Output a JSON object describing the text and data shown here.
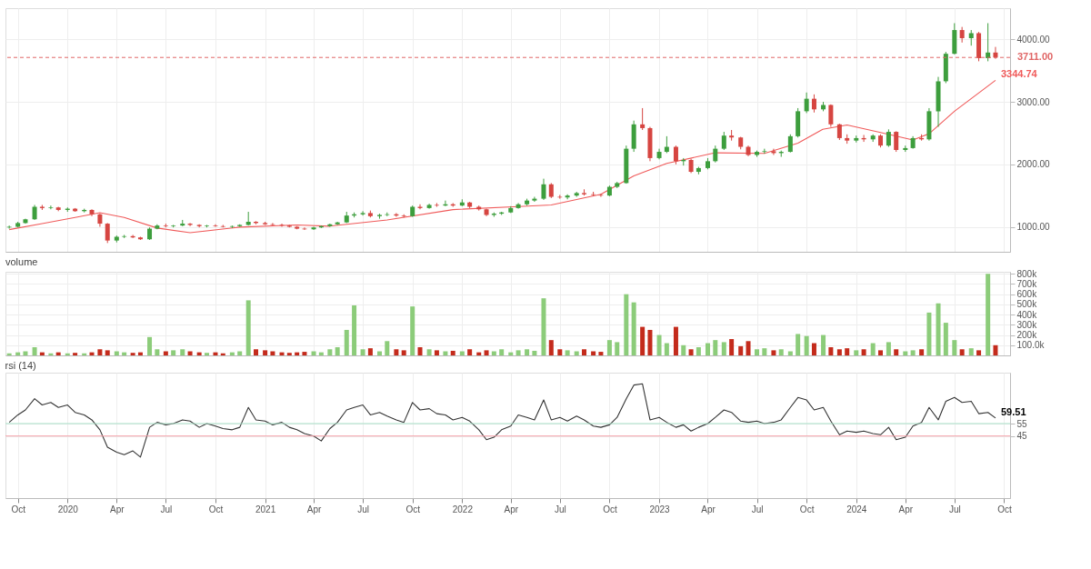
{
  "chart_data": [
    {
      "type": "candlestick",
      "grid": true,
      "tick_labels": "y",
      "x": [
        "2019-09-15",
        "2019-10-01",
        "2019-10-15",
        "2019-11-01",
        "2019-11-15",
        "2019-12-01",
        "2019-12-15",
        "2020-01-01",
        "2020-01-15",
        "2020-02-01",
        "2020-02-15",
        "2020-03-01",
        "2020-03-15",
        "2020-04-01",
        "2020-04-15",
        "2020-05-01",
        "2020-05-15",
        "2020-06-01",
        "2020-06-15",
        "2020-07-01",
        "2020-07-15",
        "2020-08-01",
        "2020-08-15",
        "2020-09-01",
        "2020-09-15",
        "2020-10-01",
        "2020-10-15",
        "2020-11-01",
        "2020-11-15",
        "2020-12-01",
        "2020-12-15",
        "2021-01-01",
        "2021-01-15",
        "2021-02-01",
        "2021-02-15",
        "2021-03-01",
        "2021-03-15",
        "2021-04-01",
        "2021-04-15",
        "2021-05-01",
        "2021-05-15",
        "2021-06-01",
        "2021-06-15",
        "2021-07-01",
        "2021-07-15",
        "2021-08-01",
        "2021-08-15",
        "2021-09-01",
        "2021-09-15",
        "2021-10-01",
        "2021-10-15",
        "2021-11-01",
        "2021-11-15",
        "2021-12-01",
        "2021-12-15",
        "2022-01-01",
        "2022-01-15",
        "2022-02-01",
        "2022-02-15",
        "2022-03-01",
        "2022-03-15",
        "2022-04-01",
        "2022-04-15",
        "2022-05-01",
        "2022-05-15",
        "2022-06-01",
        "2022-06-15",
        "2022-07-01",
        "2022-07-15",
        "2022-08-01",
        "2022-08-15",
        "2022-09-01",
        "2022-09-15",
        "2022-10-01",
        "2022-10-15",
        "2022-11-01",
        "2022-11-15",
        "2022-12-01",
        "2022-12-15",
        "2023-01-01",
        "2023-01-15",
        "2023-02-01",
        "2023-02-15",
        "2023-03-01",
        "2023-03-15",
        "2023-04-01",
        "2023-04-15",
        "2023-05-01",
        "2023-05-15",
        "2023-06-01",
        "2023-06-15",
        "2023-07-01",
        "2023-07-15",
        "2023-08-01",
        "2023-08-15",
        "2023-09-01",
        "2023-09-15",
        "2023-10-01",
        "2023-10-15",
        "2023-11-01",
        "2023-11-15",
        "2023-12-01",
        "2023-12-15",
        "2024-01-01",
        "2024-01-15",
        "2024-02-01",
        "2024-02-15",
        "2024-03-01",
        "2024-03-15",
        "2024-04-01",
        "2024-04-15",
        "2024-05-01",
        "2024-05-15",
        "2024-06-01",
        "2024-06-15",
        "2024-07-01",
        "2024-07-15",
        "2024-08-01",
        "2024-08-15",
        "2024-09-01",
        "2024-09-15"
      ],
      "ohlc": [
        [
          990,
          1020,
          970,
          1000
        ],
        [
          1000,
          1080,
          990,
          1060
        ],
        [
          1060,
          1130,
          1050,
          1120
        ],
        [
          1120,
          1350,
          1110,
          1320
        ],
        [
          1320,
          1350,
          1270,
          1300
        ],
        [
          1300,
          1340,
          1280,
          1310
        ],
        [
          1310,
          1320,
          1250,
          1270
        ],
        [
          1270,
          1310,
          1240,
          1290
        ],
        [
          1290,
          1300,
          1240,
          1250
        ],
        [
          1250,
          1290,
          1230,
          1270
        ],
        [
          1270,
          1280,
          1170,
          1200
        ],
        [
          1200,
          1210,
          1000,
          1050
        ],
        [
          1050,
          1060,
          740,
          780
        ],
        [
          780,
          860,
          750,
          840
        ],
        [
          840,
          870,
          820,
          850
        ],
        [
          850,
          870,
          820,
          830
        ],
        [
          830,
          840,
          790,
          800
        ],
        [
          800,
          990,
          790,
          970
        ],
        [
          970,
          1040,
          960,
          1020
        ],
        [
          1020,
          1050,
          990,
          1010
        ],
        [
          1010,
          1030,
          990,
          1020
        ],
        [
          1020,
          1110,
          1010,
          1050
        ],
        [
          1050,
          1060,
          1010,
          1030
        ],
        [
          1030,
          1040,
          990,
          1010
        ],
        [
          1010,
          1030,
          990,
          1020
        ],
        [
          1020,
          1040,
          1000,
          1010
        ],
        [
          1010,
          1030,
          990,
          1000
        ],
        [
          1000,
          1020,
          980,
          1010
        ],
        [
          1010,
          1040,
          1000,
          1030
        ],
        [
          1030,
          1240,
          1020,
          1080
        ],
        [
          1080,
          1090,
          1040,
          1060
        ],
        [
          1060,
          1080,
          1030,
          1040
        ],
        [
          1040,
          1060,
          1020,
          1030
        ],
        [
          1030,
          1050,
          1000,
          1020
        ],
        [
          1020,
          1030,
          990,
          1000
        ],
        [
          1000,
          1010,
          960,
          970
        ],
        [
          970,
          990,
          950,
          960
        ],
        [
          960,
          1000,
          950,
          990
        ],
        [
          990,
          1020,
          980,
          1010
        ],
        [
          1010,
          1050,
          1000,
          1040
        ],
        [
          1040,
          1080,
          1030,
          1070
        ],
        [
          1070,
          1240,
          1060,
          1180
        ],
        [
          1180,
          1230,
          1150,
          1200
        ],
        [
          1200,
          1250,
          1180,
          1220
        ],
        [
          1220,
          1260,
          1150,
          1170
        ],
        [
          1170,
          1210,
          1130,
          1190
        ],
        [
          1190,
          1230,
          1170,
          1200
        ],
        [
          1200,
          1220,
          1160,
          1180
        ],
        [
          1180,
          1200,
          1150,
          1170
        ],
        [
          1170,
          1340,
          1160,
          1320
        ],
        [
          1320,
          1360,
          1280,
          1300
        ],
        [
          1300,
          1370,
          1290,
          1350
        ],
        [
          1350,
          1380,
          1320,
          1340
        ],
        [
          1340,
          1420,
          1330,
          1360
        ],
        [
          1360,
          1380,
          1320,
          1340
        ],
        [
          1340,
          1440,
          1330,
          1390
        ],
        [
          1390,
          1400,
          1300,
          1320
        ],
        [
          1320,
          1340,
          1260,
          1280
        ],
        [
          1280,
          1290,
          1170,
          1190
        ],
        [
          1190,
          1230,
          1160,
          1210
        ],
        [
          1210,
          1240,
          1190,
          1230
        ],
        [
          1230,
          1330,
          1220,
          1300
        ],
        [
          1300,
          1380,
          1290,
          1360
        ],
        [
          1360,
          1450,
          1340,
          1420
        ],
        [
          1420,
          1480,
          1400,
          1450
        ],
        [
          1450,
          1770,
          1430,
          1680
        ],
        [
          1680,
          1700,
          1460,
          1480
        ],
        [
          1480,
          1510,
          1450,
          1470
        ],
        [
          1470,
          1520,
          1440,
          1500
        ],
        [
          1500,
          1560,
          1480,
          1540
        ],
        [
          1540,
          1600,
          1500,
          1520
        ],
        [
          1520,
          1560,
          1490,
          1510
        ],
        [
          1510,
          1530,
          1480,
          1500
        ],
        [
          1500,
          1660,
          1490,
          1640
        ],
        [
          1640,
          1720,
          1620,
          1700
        ],
        [
          1700,
          2300,
          1690,
          2250
        ],
        [
          2250,
          2700,
          2200,
          2640
        ],
        [
          2640,
          2900,
          2550,
          2580
        ],
        [
          2580,
          2600,
          2050,
          2100
        ],
        [
          2100,
          2250,
          2080,
          2200
        ],
        [
          2200,
          2450,
          2180,
          2280
        ],
        [
          2280,
          2300,
          2000,
          2050
        ],
        [
          2050,
          2100,
          1980,
          2070
        ],
        [
          2070,
          2090,
          1860,
          1880
        ],
        [
          1880,
          1960,
          1840,
          1940
        ],
        [
          1940,
          2100,
          1920,
          2050
        ],
        [
          2050,
          2300,
          2030,
          2250
        ],
        [
          2250,
          2520,
          2230,
          2460
        ],
        [
          2460,
          2550,
          2380,
          2430
        ],
        [
          2430,
          2440,
          2240,
          2280
        ],
        [
          2280,
          2300,
          2130,
          2150
        ],
        [
          2150,
          2220,
          2120,
          2200
        ],
        [
          2200,
          2250,
          2170,
          2210
        ],
        [
          2210,
          2250,
          2150,
          2180
        ],
        [
          2180,
          2220,
          2120,
          2200
        ],
        [
          2200,
          2480,
          2190,
          2450
        ],
        [
          2450,
          2900,
          2430,
          2850
        ],
        [
          2850,
          3150,
          2820,
          3050
        ],
        [
          3050,
          3120,
          2830,
          2880
        ],
        [
          2880,
          3000,
          2850,
          2950
        ],
        [
          2950,
          2960,
          2600,
          2640
        ],
        [
          2640,
          2650,
          2390,
          2420
        ],
        [
          2420,
          2480,
          2330,
          2380
        ],
        [
          2380,
          2460,
          2350,
          2420
        ],
        [
          2420,
          2470,
          2360,
          2400
        ],
        [
          2400,
          2480,
          2360,
          2460
        ],
        [
          2460,
          2480,
          2270,
          2300
        ],
        [
          2300,
          2560,
          2280,
          2520
        ],
        [
          2520,
          2530,
          2200,
          2230
        ],
        [
          2230,
          2300,
          2200,
          2260
        ],
        [
          2260,
          2450,
          2250,
          2420
        ],
        [
          2420,
          2480,
          2380,
          2400
        ],
        [
          2400,
          2900,
          2380,
          2850
        ],
        [
          2850,
          3400,
          2600,
          3330
        ],
        [
          3330,
          3800,
          3300,
          3770
        ],
        [
          3770,
          4260,
          3760,
          4150
        ],
        [
          4150,
          4200,
          3950,
          4020
        ],
        [
          4020,
          4150,
          3900,
          4100
        ],
        [
          4100,
          4120,
          3650,
          3700
        ],
        [
          3700,
          4260,
          3650,
          3790
        ],
        [
          3790,
          3880,
          3690,
          3711
        ]
      ],
      "colors": [
        "#3d9e3d",
        "#3d9e3d",
        "#3d9e3d",
        "#3d9e3d",
        "#d64541",
        "#3d9e3d",
        "#d64541",
        "#3d9e3d",
        "#d64541",
        "#3d9e3d",
        "#d64541",
        "#d64541",
        "#d64541",
        "#3d9e3d",
        "#3d9e3d",
        "#d64541",
        "#d64541",
        "#3d9e3d",
        "#3d9e3d",
        "#d64541",
        "#3d9e3d",
        "#3d9e3d",
        "#d64541",
        "#d64541",
        "#3d9e3d",
        "#d64541",
        "#d64541",
        "#3d9e3d",
        "#3d9e3d",
        "#3d9e3d",
        "#d64541",
        "#d64541",
        "#d64541",
        "#d64541",
        "#d64541",
        "#d64541",
        "#d64541",
        "#3d9e3d",
        "#3d9e3d",
        "#3d9e3d",
        "#3d9e3d",
        "#3d9e3d",
        "#3d9e3d",
        "#3d9e3d",
        "#d64541",
        "#3d9e3d",
        "#3d9e3d",
        "#d64541",
        "#d64541",
        "#3d9e3d",
        "#d64541",
        "#3d9e3d",
        "#d64541",
        "#3d9e3d",
        "#d64541",
        "#3d9e3d",
        "#d64541",
        "#d64541",
        "#d64541",
        "#3d9e3d",
        "#3d9e3d",
        "#3d9e3d",
        "#3d9e3d",
        "#3d9e3d",
        "#3d9e3d",
        "#3d9e3d",
        "#d64541",
        "#d64541",
        "#3d9e3d",
        "#3d9e3d",
        "#d64541",
        "#d64541",
        "#d64541",
        "#3d9e3d",
        "#3d9e3d",
        "#3d9e3d",
        "#3d9e3d",
        "#d64541",
        "#d64541",
        "#3d9e3d",
        "#3d9e3d",
        "#d64541",
        "#3d9e3d",
        "#d64541",
        "#3d9e3d",
        "#3d9e3d",
        "#3d9e3d",
        "#3d9e3d",
        "#d64541",
        "#d64541",
        "#d64541",
        "#3d9e3d",
        "#3d9e3d",
        "#d64541",
        "#3d9e3d",
        "#3d9e3d",
        "#3d9e3d",
        "#3d9e3d",
        "#d64541",
        "#3d9e3d",
        "#d64541",
        "#d64541",
        "#d64541",
        "#3d9e3d",
        "#d64541",
        "#3d9e3d",
        "#d64541",
        "#3d9e3d",
        "#d64541",
        "#3d9e3d",
        "#3d9e3d",
        "#d64541",
        "#3d9e3d",
        "#3d9e3d",
        "#3d9e3d",
        "#3d9e3d",
        "#d64541",
        "#3d9e3d",
        "#d64541",
        "#3d9e3d",
        "#d64541"
      ],
      "series": [
        {
          "type": "line",
          "color": "#f05a5a",
          "x": [
            "2019-09-15",
            "2019-11-15",
            "2020-01-15",
            "2020-03-01",
            "2020-04-15",
            "2020-06-15",
            "2020-08-15",
            "2020-11-15",
            "2021-03-01",
            "2021-05-01",
            "2021-08-15",
            "2021-12-15",
            "2022-04-15",
            "2022-06-15",
            "2022-09-15",
            "2022-11-15",
            "2023-01-15",
            "2023-04-15",
            "2023-07-15",
            "2023-09-15",
            "2023-10-31",
            "2023-12-15",
            "2024-02-15",
            "2024-04-15",
            "2024-05-15",
            "2024-07-01",
            "2024-09-15"
          ],
          "values": [
            955,
            1050,
            1150,
            1225,
            1150,
            980,
            905,
            995,
            1030,
            1010,
            1110,
            1275,
            1325,
            1350,
            1520,
            1815,
            2015,
            2185,
            2175,
            2340,
            2560,
            2630,
            2510,
            2390,
            2490,
            2850,
            3344.74
          ]
        }
      ],
      "xlim": [
        "2019-09-08",
        "2024-10-12"
      ],
      "ylim": [
        600,
        4500
      ],
      "yticks": [
        {
          "value": 1000,
          "label": "1000.00"
        },
        {
          "value": 2000,
          "label": "2000.00"
        },
        {
          "value": 3000,
          "label": "3000.00"
        },
        {
          "value": 4000,
          "label": "4000.00"
        }
      ],
      "xticks": [
        {
          "value": "2019-10-01",
          "label": null
        },
        {
          "value": "2020-01-01",
          "label": null
        },
        {
          "value": "2020-04-01",
          "label": null
        },
        {
          "value": "2020-07-01",
          "label": null
        },
        {
          "value": "2020-10-01",
          "label": null
        },
        {
          "value": "2021-01-01",
          "label": null
        },
        {
          "value": "2021-04-01",
          "label": null
        },
        {
          "value": "2021-07-01",
          "label": null
        },
        {
          "value": "2021-10-01",
          "label": null
        },
        {
          "value": "2022-01-01",
          "label": null
        },
        {
          "value": "2022-04-01",
          "label": null
        },
        {
          "value": "2022-07-01",
          "label": null
        },
        {
          "value": "2022-10-01",
          "label": null
        },
        {
          "value": "2023-01-01",
          "label": null
        },
        {
          "value": "2023-04-01",
          "label": null
        },
        {
          "value": "2023-07-01",
          "label": null
        },
        {
          "value": "2023-10-01",
          "label": null
        },
        {
          "value": "2024-01-01",
          "label": null
        },
        {
          "value": "2024-04-01",
          "label": null
        },
        {
          "value": "2024-07-01",
          "label": null
        },
        {
          "value": "2024-10-01",
          "label": null
        }
      ],
      "ref_lines": [
        {
          "axis": "y",
          "value": 3711,
          "label": "3711.00",
          "color": "#e06666",
          "line_style": "dashed"
        }
      ],
      "annotations": [
        {
          "text": "3344.74",
          "x": "2024-09-15",
          "y": 3344.74
        }
      ]
    },
    {
      "type": "bar",
      "title": "volume",
      "grid": true,
      "tick_labels": "y",
      "x": [
        "2019-09-15",
        "2019-10-01",
        "2019-10-15",
        "2019-11-01",
        "2019-11-15",
        "2019-12-01",
        "2019-12-15",
        "2020-01-01",
        "2020-01-15",
        "2020-02-01",
        "2020-02-15",
        "2020-03-01",
        "2020-03-15",
        "2020-04-01",
        "2020-04-15",
        "2020-05-01",
        "2020-05-15",
        "2020-06-01",
        "2020-06-15",
        "2020-07-01",
        "2020-07-15",
        "2020-08-01",
        "2020-08-15",
        "2020-09-01",
        "2020-09-15",
        "2020-10-01",
        "2020-10-15",
        "2020-11-01",
        "2020-11-15",
        "2020-12-01",
        "2020-12-15",
        "2021-01-01",
        "2021-01-15",
        "2021-02-01",
        "2021-02-15",
        "2021-03-01",
        "2021-03-15",
        "2021-04-01",
        "2021-04-15",
        "2021-05-01",
        "2021-05-15",
        "2021-06-01",
        "2021-06-15",
        "2021-07-01",
        "2021-07-15",
        "2021-08-01",
        "2021-08-15",
        "2021-09-01",
        "2021-09-15",
        "2021-10-01",
        "2021-10-15",
        "2021-11-01",
        "2021-11-15",
        "2021-12-01",
        "2021-12-15",
        "2022-01-01",
        "2022-01-15",
        "2022-02-01",
        "2022-02-15",
        "2022-03-01",
        "2022-03-15",
        "2022-04-01",
        "2022-04-15",
        "2022-05-01",
        "2022-05-15",
        "2022-06-01",
        "2022-06-15",
        "2022-07-01",
        "2022-07-15",
        "2022-08-01",
        "2022-08-15",
        "2022-09-01",
        "2022-09-15",
        "2022-10-01",
        "2022-10-15",
        "2022-11-01",
        "2022-11-15",
        "2022-12-01",
        "2022-12-15",
        "2023-01-01",
        "2023-01-15",
        "2023-02-01",
        "2023-02-15",
        "2023-03-01",
        "2023-03-15",
        "2023-04-01",
        "2023-04-15",
        "2023-05-01",
        "2023-05-15",
        "2023-06-01",
        "2023-06-15",
        "2023-07-01",
        "2023-07-15",
        "2023-08-01",
        "2023-08-15",
        "2023-09-01",
        "2023-09-15",
        "2023-10-01",
        "2023-10-15",
        "2023-11-01",
        "2023-11-15",
        "2023-12-01",
        "2023-12-15",
        "2024-01-01",
        "2024-01-15",
        "2024-02-01",
        "2024-02-15",
        "2024-03-01",
        "2024-03-15",
        "2024-04-01",
        "2024-04-15",
        "2024-05-01",
        "2024-05-15",
        "2024-06-01",
        "2024-06-15",
        "2024-07-01",
        "2024-07-15",
        "2024-08-01",
        "2024-08-15",
        "2024-09-01",
        "2024-09-15"
      ],
      "values": [
        20000,
        30000,
        40000,
        80000,
        30000,
        20000,
        30000,
        20000,
        25000,
        20000,
        30000,
        60000,
        50000,
        40000,
        30000,
        25000,
        30000,
        180000,
        60000,
        40000,
        50000,
        60000,
        40000,
        30000,
        25000,
        30000,
        20000,
        30000,
        40000,
        540000,
        60000,
        50000,
        40000,
        30000,
        25000,
        30000,
        35000,
        40000,
        30000,
        60000,
        80000,
        250000,
        490000,
        60000,
        70000,
        40000,
        140000,
        60000,
        50000,
        480000,
        80000,
        60000,
        50000,
        40000,
        45000,
        40000,
        60000,
        30000,
        50000,
        40000,
        60000,
        30000,
        50000,
        60000,
        45000,
        560000,
        150000,
        60000,
        50000,
        40000,
        60000,
        40000,
        35000,
        150000,
        130000,
        600000,
        520000,
        280000,
        250000,
        200000,
        120000,
        280000,
        100000,
        60000,
        80000,
        120000,
        150000,
        130000,
        160000,
        90000,
        140000,
        60000,
        70000,
        50000,
        60000,
        40000,
        210000,
        190000,
        120000,
        200000,
        80000,
        60000,
        70000,
        50000,
        60000,
        120000,
        50000,
        130000,
        60000,
        40000,
        50000,
        60000,
        420000,
        510000,
        320000,
        150000,
        60000,
        70000,
        50000,
        800000,
        100000
      ],
      "colors": [
        "#8ccc7a",
        "#8ccc7a",
        "#8ccc7a",
        "#8ccc7a",
        "#c42b1c",
        "#8ccc7a",
        "#c42b1c",
        "#8ccc7a",
        "#c42b1c",
        "#8ccc7a",
        "#c42b1c",
        "#c42b1c",
        "#c42b1c",
        "#8ccc7a",
        "#8ccc7a",
        "#c42b1c",
        "#c42b1c",
        "#8ccc7a",
        "#8ccc7a",
        "#c42b1c",
        "#8ccc7a",
        "#8ccc7a",
        "#c42b1c",
        "#c42b1c",
        "#8ccc7a",
        "#c42b1c",
        "#c42b1c",
        "#8ccc7a",
        "#8ccc7a",
        "#8ccc7a",
        "#c42b1c",
        "#c42b1c",
        "#c42b1c",
        "#c42b1c",
        "#c42b1c",
        "#c42b1c",
        "#c42b1c",
        "#8ccc7a",
        "#8ccc7a",
        "#8ccc7a",
        "#8ccc7a",
        "#8ccc7a",
        "#8ccc7a",
        "#8ccc7a",
        "#c42b1c",
        "#8ccc7a",
        "#8ccc7a",
        "#c42b1c",
        "#c42b1c",
        "#8ccc7a",
        "#c42b1c",
        "#8ccc7a",
        "#c42b1c",
        "#8ccc7a",
        "#c42b1c",
        "#8ccc7a",
        "#c42b1c",
        "#c42b1c",
        "#c42b1c",
        "#8ccc7a",
        "#8ccc7a",
        "#8ccc7a",
        "#8ccc7a",
        "#8ccc7a",
        "#8ccc7a",
        "#8ccc7a",
        "#c42b1c",
        "#c42b1c",
        "#8ccc7a",
        "#8ccc7a",
        "#c42b1c",
        "#c42b1c",
        "#c42b1c",
        "#8ccc7a",
        "#8ccc7a",
        "#8ccc7a",
        "#8ccc7a",
        "#c42b1c",
        "#c42b1c",
        "#8ccc7a",
        "#8ccc7a",
        "#c42b1c",
        "#8ccc7a",
        "#c42b1c",
        "#8ccc7a",
        "#8ccc7a",
        "#8ccc7a",
        "#8ccc7a",
        "#c42b1c",
        "#c42b1c",
        "#c42b1c",
        "#8ccc7a",
        "#8ccc7a",
        "#c42b1c",
        "#8ccc7a",
        "#8ccc7a",
        "#8ccc7a",
        "#8ccc7a",
        "#c42b1c",
        "#8ccc7a",
        "#c42b1c",
        "#c42b1c",
        "#c42b1c",
        "#8ccc7a",
        "#c42b1c",
        "#8ccc7a",
        "#c42b1c",
        "#8ccc7a",
        "#c42b1c",
        "#8ccc7a",
        "#8ccc7a",
        "#c42b1c",
        "#8ccc7a",
        "#8ccc7a",
        "#8ccc7a",
        "#8ccc7a",
        "#c42b1c",
        "#8ccc7a",
        "#c42b1c",
        "#8ccc7a",
        "#c42b1c"
      ],
      "xlim": [
        "2019-09-08",
        "2024-10-12"
      ],
      "ylim": [
        0,
        820000
      ],
      "yticks": [
        {
          "value": 100000,
          "label": "100.0k"
        },
        {
          "value": 200000,
          "label": "200k"
        },
        {
          "value": 300000,
          "label": "300k"
        },
        {
          "value": 400000,
          "label": "400k"
        },
        {
          "value": 500000,
          "label": "500k"
        },
        {
          "value": 600000,
          "label": "600k"
        },
        {
          "value": 700000,
          "label": "700k"
        },
        {
          "value": 800000,
          "label": "800k"
        }
      ],
      "xticks": [
        {
          "value": "2019-10-01",
          "label": null
        },
        {
          "value": "2020-01-01",
          "label": null
        },
        {
          "value": "2020-04-01",
          "label": null
        },
        {
          "value": "2020-07-01",
          "label": null
        },
        {
          "value": "2020-10-01",
          "label": null
        },
        {
          "value": "2021-01-01",
          "label": null
        },
        {
          "value": "2021-04-01",
          "label": null
        },
        {
          "value": "2021-07-01",
          "label": null
        },
        {
          "value": "2021-10-01",
          "label": null
        },
        {
          "value": "2022-01-01",
          "label": null
        },
        {
          "value": "2022-04-01",
          "label": null
        },
        {
          "value": "2022-07-01",
          "label": null
        },
        {
          "value": "2022-10-01",
          "label": null
        },
        {
          "value": "2023-01-01",
          "label": null
        },
        {
          "value": "2023-04-01",
          "label": null
        },
        {
          "value": "2023-07-01",
          "label": null
        },
        {
          "value": "2023-10-01",
          "label": null
        },
        {
          "value": "2024-01-01",
          "label": null
        },
        {
          "value": "2024-04-01",
          "label": null
        },
        {
          "value": "2024-07-01",
          "label": null
        },
        {
          "value": "2024-10-01",
          "label": null
        }
      ]
    },
    {
      "type": "line",
      "title": "rsi (14)",
      "grid": true,
      "color": "#333333",
      "x": [
        "2019-09-15",
        "2019-10-01",
        "2019-10-15",
        "2019-11-01",
        "2019-11-15",
        "2019-12-01",
        "2019-12-15",
        "2020-01-01",
        "2020-01-15",
        "2020-02-01",
        "2020-02-15",
        "2020-03-01",
        "2020-03-15",
        "2020-04-01",
        "2020-04-15",
        "2020-05-01",
        "2020-05-15",
        "2020-06-01",
        "2020-06-15",
        "2020-07-01",
        "2020-07-15",
        "2020-08-01",
        "2020-08-15",
        "2020-09-01",
        "2020-09-15",
        "2020-10-01",
        "2020-10-15",
        "2020-11-01",
        "2020-11-15",
        "2020-12-01",
        "2020-12-15",
        "2021-01-01",
        "2021-01-15",
        "2021-02-01",
        "2021-02-15",
        "2021-03-01",
        "2021-03-15",
        "2021-04-01",
        "2021-04-15",
        "2021-05-01",
        "2021-05-15",
        "2021-06-01",
        "2021-06-15",
        "2021-07-01",
        "2021-07-15",
        "2021-08-01",
        "2021-08-15",
        "2021-09-01",
        "2021-09-15",
        "2021-10-01",
        "2021-10-15",
        "2021-11-01",
        "2021-11-15",
        "2021-12-01",
        "2021-12-15",
        "2022-01-01",
        "2022-01-15",
        "2022-02-01",
        "2022-02-15",
        "2022-03-01",
        "2022-03-15",
        "2022-04-01",
        "2022-04-15",
        "2022-05-01",
        "2022-05-15",
        "2022-06-01",
        "2022-06-15",
        "2022-07-01",
        "2022-07-15",
        "2022-08-01",
        "2022-08-15",
        "2022-09-01",
        "2022-09-15",
        "2022-10-01",
        "2022-10-15",
        "2022-11-01",
        "2022-11-15",
        "2022-12-01",
        "2022-12-15",
        "2023-01-01",
        "2023-01-15",
        "2023-02-01",
        "2023-02-15",
        "2023-03-01",
        "2023-03-15",
        "2023-04-01",
        "2023-04-15",
        "2023-05-01",
        "2023-05-15",
        "2023-06-01",
        "2023-06-15",
        "2023-07-01",
        "2023-07-15",
        "2023-08-01",
        "2023-08-15",
        "2023-09-01",
        "2023-09-15",
        "2023-10-01",
        "2023-10-15",
        "2023-11-01",
        "2023-11-15",
        "2023-12-01",
        "2023-12-15",
        "2024-01-01",
        "2024-01-15",
        "2024-02-01",
        "2024-02-15",
        "2024-03-01",
        "2024-03-15",
        "2024-04-01",
        "2024-04-15",
        "2024-05-01",
        "2024-05-15",
        "2024-06-01",
        "2024-06-15",
        "2024-07-01",
        "2024-07-15",
        "2024-08-01",
        "2024-08-15",
        "2024-09-01",
        "2024-09-15"
      ],
      "values": [
        56,
        62,
        66,
        75,
        70,
        72,
        68,
        70,
        64,
        62,
        58,
        50,
        36,
        32,
        30,
        33,
        28,
        52,
        56,
        54,
        55,
        58,
        57,
        52,
        55,
        53,
        51,
        50,
        52,
        68,
        58,
        57,
        54,
        56,
        52,
        50,
        47,
        45,
        41,
        51,
        56,
        66,
        68,
        70,
        62,
        64,
        61,
        58,
        56,
        72,
        66,
        67,
        63,
        62,
        58,
        60,
        57,
        50,
        42,
        44,
        50,
        53,
        62,
        60,
        58,
        74,
        58,
        60,
        57,
        61,
        58,
        53,
        52,
        54,
        60,
        75,
        86,
        87,
        58,
        60,
        56,
        52,
        54,
        49,
        52,
        55,
        60,
        66,
        64,
        57,
        56,
        57,
        55,
        56,
        58,
        68,
        76,
        74,
        66,
        68,
        57,
        46,
        49,
        48,
        49,
        47,
        46,
        52,
        42,
        44,
        53,
        56,
        68,
        58,
        73,
        76,
        72,
        73,
        63,
        64,
        59.51
      ],
      "xlim": [
        "2019-09-08",
        "2024-10-12"
      ],
      "ylim": [
        -5,
        96
      ],
      "yticks": [
        45,
        55
      ],
      "xticks": [
        {
          "value": "2019-10-01",
          "label": "Oct"
        },
        {
          "value": "2020-01-01",
          "label": "2020"
        },
        {
          "value": "2020-04-01",
          "label": "Apr"
        },
        {
          "value": "2020-07-01",
          "label": "Jul"
        },
        {
          "value": "2020-10-01",
          "label": "Oct"
        },
        {
          "value": "2021-01-01",
          "label": "2021"
        },
        {
          "value": "2021-04-01",
          "label": "Apr"
        },
        {
          "value": "2021-07-01",
          "label": "Jul"
        },
        {
          "value": "2021-10-01",
          "label": "Oct"
        },
        {
          "value": "2022-01-01",
          "label": "2022"
        },
        {
          "value": "2022-04-01",
          "label": "Apr"
        },
        {
          "value": "2022-07-01",
          "label": "Jul"
        },
        {
          "value": "2022-10-01",
          "label": "Oct"
        },
        {
          "value": "2023-01-01",
          "label": "2023"
        },
        {
          "value": "2023-04-01",
          "label": "Apr"
        },
        {
          "value": "2023-07-01",
          "label": "Jul"
        },
        {
          "value": "2023-10-01",
          "label": "Oct"
        },
        {
          "value": "2024-01-01",
          "label": "2024"
        },
        {
          "value": "2024-04-01",
          "label": "Apr"
        },
        {
          "value": "2024-07-01",
          "label": "Jul"
        },
        {
          "value": "2024-10-01",
          "label": "Oct"
        }
      ],
      "ref_lines": [
        {
          "axis": "y",
          "value": 55,
          "color": "#a8e0c8"
        },
        {
          "axis": "y",
          "value": 45,
          "color": "#f4a0a8"
        }
      ],
      "annotations": [
        {
          "text": "59.51",
          "x": "2024-09-15",
          "y": 59.51
        }
      ]
    }
  ]
}
